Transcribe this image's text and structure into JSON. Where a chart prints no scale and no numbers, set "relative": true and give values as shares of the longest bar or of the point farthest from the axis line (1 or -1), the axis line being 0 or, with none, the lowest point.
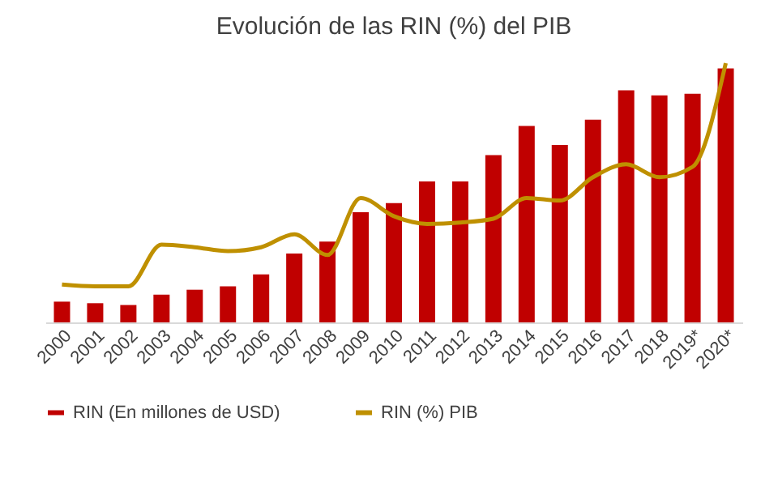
{
  "chart_data": {
    "type": "bar",
    "title": "Evolución de las RIN (%) del PIB",
    "relative": true,
    "legend": "bottom",
    "categories": [
      "2000",
      "2001",
      "2002",
      "2003",
      "2004",
      "2005",
      "2006",
      "2007",
      "2008",
      "2009",
      "2010",
      "2011",
      "2012",
      "2013",
      "2014",
      "2015",
      "2016",
      "2017",
      "2018",
      "2019*",
      "2020*"
    ],
    "series": [
      {
        "name": "RIN (En millones de USD)",
        "type": "bar",
        "color": "#c00000",
        "values": [
          0.08,
          0.074,
          0.067,
          0.107,
          0.126,
          0.139,
          0.185,
          0.266,
          0.312,
          0.425,
          0.46,
          0.544,
          0.544,
          0.645,
          0.758,
          0.684,
          0.782,
          0.895,
          0.876,
          0.882,
          0.98
        ]
      },
      {
        "name": "RIN (%) PIB",
        "type": "line",
        "color": "#bf9000",
        "values": [
          0.146,
          0.139,
          0.139,
          0.3,
          0.29,
          0.275,
          0.29,
          0.34,
          0.26,
          0.48,
          0.41,
          0.38,
          0.385,
          0.4,
          0.48,
          0.47,
          0.56,
          0.61,
          0.56,
          0.6,
          1.0
        ]
      }
    ]
  }
}
